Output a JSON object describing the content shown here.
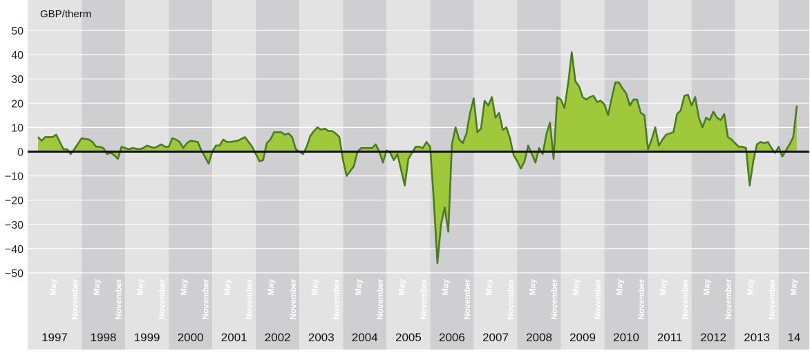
{
  "chart_data": {
    "type": "area",
    "unit_label": "GBP/therm",
    "ylim": [
      -55,
      55
    ],
    "y_ticks": [
      50,
      40,
      30,
      20,
      10,
      0,
      -10,
      -20,
      -30,
      -40,
      -50
    ],
    "y_tick_labels": [
      "50",
      "40",
      "30",
      "20",
      "10",
      "0",
      "−10",
      "−20",
      "−30",
      "−40",
      "−50"
    ],
    "years": [
      "1997",
      "1998",
      "1999",
      "2000",
      "2001",
      "2002",
      "2003",
      "2004",
      "2005",
      "2006",
      "2007",
      "2008",
      "2009",
      "2010",
      "2011",
      "2012",
      "2013",
      "14"
    ],
    "month_labels": {
      "may": "May",
      "november": "November"
    },
    "x_start": "1997-01",
    "x_end": "2014-06",
    "colors": {
      "band_light": "#e3e3e4",
      "band_dark": "#cfcfd1",
      "area_fill": "#9fc93b",
      "line": "#4a7a26",
      "zero_line": "#111111",
      "month_text": "#ffffff"
    },
    "series": [
      {
        "points": [
          [
            "1997-01",
            6
          ],
          [
            "1997-02",
            4.5
          ],
          [
            "1997-03",
            6
          ],
          [
            "1997-05",
            6
          ],
          [
            "1997-06",
            7
          ],
          [
            "1997-07",
            4
          ],
          [
            "1997-08",
            1
          ],
          [
            "1997-09",
            1
          ],
          [
            "1997-10",
            -1
          ],
          [
            "1997-11",
            1
          ],
          [
            "1998-01",
            5.5
          ],
          [
            "1998-03",
            5
          ],
          [
            "1998-04",
            4
          ],
          [
            "1998-05",
            2
          ],
          [
            "1998-06",
            2
          ],
          [
            "1998-07",
            1.5
          ],
          [
            "1998-08",
            -1
          ],
          [
            "1998-09",
            -0.5
          ],
          [
            "1998-10",
            -1.5
          ],
          [
            "1998-11",
            -3
          ],
          [
            "1998-12",
            2
          ],
          [
            "1999-02",
            1
          ],
          [
            "1999-03",
            1.5
          ],
          [
            "1999-05",
            1
          ],
          [
            "1999-06",
            1.5
          ],
          [
            "1999-07",
            2.5
          ],
          [
            "1999-09",
            1.5
          ],
          [
            "1999-11",
            3
          ],
          [
            "1999-12",
            2
          ],
          [
            "2000-01",
            2
          ],
          [
            "2000-02",
            5.5
          ],
          [
            "2000-03",
            5
          ],
          [
            "2000-04",
            4
          ],
          [
            "2000-05",
            1.5
          ],
          [
            "2000-06",
            3.5
          ],
          [
            "2000-07",
            4.5
          ],
          [
            "2000-09",
            4
          ],
          [
            "2000-10",
            0.5
          ],
          [
            "2000-12",
            -5
          ],
          [
            "2001-01",
            0
          ],
          [
            "2001-02",
            2.5
          ],
          [
            "2001-03",
            2.5
          ],
          [
            "2001-04",
            5
          ],
          [
            "2001-05",
            4
          ],
          [
            "2001-06",
            4
          ],
          [
            "2001-08",
            4.5
          ],
          [
            "2001-10",
            6
          ],
          [
            "2001-11",
            4
          ],
          [
            "2001-12",
            2
          ],
          [
            "2002-01",
            -1
          ],
          [
            "2002-02",
            -4
          ],
          [
            "2002-03",
            -3.5
          ],
          [
            "2002-04",
            3.5
          ],
          [
            "2002-05",
            5
          ],
          [
            "2002-06",
            8
          ],
          [
            "2002-08",
            8
          ],
          [
            "2002-09",
            7
          ],
          [
            "2002-10",
            7.5
          ],
          [
            "2002-11",
            6
          ],
          [
            "2002-12",
            1
          ],
          [
            "2003-01",
            0
          ],
          [
            "2003-02",
            -1
          ],
          [
            "2003-03",
            2
          ],
          [
            "2003-04",
            6.5
          ],
          [
            "2003-05",
            8.5
          ],
          [
            "2003-06",
            10
          ],
          [
            "2003-07",
            9
          ],
          [
            "2003-08",
            9.5
          ],
          [
            "2003-09",
            8.5
          ],
          [
            "2003-10",
            8.5
          ],
          [
            "2003-11",
            7.5
          ],
          [
            "2003-12",
            6
          ],
          [
            "2004-01",
            -3.5
          ],
          [
            "2004-02",
            -10
          ],
          [
            "2004-03",
            -8
          ],
          [
            "2004-04",
            -6
          ],
          [
            "2004-05",
            0
          ],
          [
            "2004-06",
            1.5
          ],
          [
            "2004-07",
            1.5
          ],
          [
            "2004-08",
            1.5
          ],
          [
            "2004-09",
            1.5
          ],
          [
            "2004-10",
            3
          ],
          [
            "2004-11",
            0
          ],
          [
            "2004-12",
            -4.5
          ],
          [
            "2005-01",
            0.5
          ],
          [
            "2005-02",
            -0.5
          ],
          [
            "2005-03",
            -3.5
          ],
          [
            "2005-04",
            -1
          ],
          [
            "2005-06",
            -14
          ],
          [
            "2005-07",
            -3
          ],
          [
            "2005-08",
            -0.5
          ],
          [
            "2005-09",
            2
          ],
          [
            "2005-10",
            2
          ],
          [
            "2005-11",
            1.5
          ],
          [
            "2005-12",
            4
          ],
          [
            "2006-01",
            2
          ],
          [
            "2006-02",
            -20
          ],
          [
            "2006-03",
            -46
          ],
          [
            "2006-04",
            -30
          ],
          [
            "2006-05",
            -23
          ],
          [
            "2006-06",
            -33
          ],
          [
            "2006-07",
            3
          ],
          [
            "2006-08",
            10
          ],
          [
            "2006-09",
            5
          ],
          [
            "2006-10",
            3.5
          ],
          [
            "2006-11",
            7.5
          ],
          [
            "2006-12",
            16
          ],
          [
            "2007-01",
            22
          ],
          [
            "2007-02",
            8
          ],
          [
            "2007-03",
            9.5
          ],
          [
            "2007-04",
            21
          ],
          [
            "2007-05",
            19
          ],
          [
            "2007-06",
            22.5
          ],
          [
            "2007-07",
            14
          ],
          [
            "2007-08",
            16
          ],
          [
            "2007-09",
            9
          ],
          [
            "2007-10",
            10
          ],
          [
            "2007-11",
            5.5
          ],
          [
            "2007-12",
            -1.5
          ],
          [
            "2008-01",
            -4
          ],
          [
            "2008-02",
            -7
          ],
          [
            "2008-03",
            -4
          ],
          [
            "2008-04",
            2.5
          ],
          [
            "2008-05",
            -1
          ],
          [
            "2008-06",
            -4.5
          ],
          [
            "2008-07",
            1.5
          ],
          [
            "2008-08",
            -1
          ],
          [
            "2008-09",
            7
          ],
          [
            "2008-10",
            12
          ],
          [
            "2008-11",
            -3
          ],
          [
            "2008-12",
            22.5
          ],
          [
            "2009-01",
            21.5
          ],
          [
            "2009-02",
            18
          ],
          [
            "2009-03",
            28
          ],
          [
            "2009-04",
            41
          ],
          [
            "2009-05",
            29
          ],
          [
            "2009-06",
            27
          ],
          [
            "2009-07",
            22.5
          ],
          [
            "2009-08",
            21.5
          ],
          [
            "2009-09",
            22.5
          ],
          [
            "2009-10",
            23
          ],
          [
            "2009-11",
            20.5
          ],
          [
            "2009-12",
            21
          ],
          [
            "2010-01",
            19.5
          ],
          [
            "2010-02",
            15
          ],
          [
            "2010-03",
            22
          ],
          [
            "2010-04",
            28.5
          ],
          [
            "2010-05",
            28.5
          ],
          [
            "2010-06",
            26
          ],
          [
            "2010-07",
            24
          ],
          [
            "2010-08",
            19
          ],
          [
            "2010-09",
            21.5
          ],
          [
            "2010-10",
            21.5
          ],
          [
            "2010-11",
            16
          ],
          [
            "2010-12",
            15
          ],
          [
            "2011-01",
            1
          ],
          [
            "2011-02",
            5
          ],
          [
            "2011-03",
            10
          ],
          [
            "2011-04",
            2.5
          ],
          [
            "2011-05",
            5
          ],
          [
            "2011-06",
            7
          ],
          [
            "2011-07",
            7.5
          ],
          [
            "2011-08",
            8
          ],
          [
            "2011-09",
            15.5
          ],
          [
            "2011-10",
            17
          ],
          [
            "2011-11",
            23
          ],
          [
            "2011-12",
            23.5
          ],
          [
            "2012-01",
            19
          ],
          [
            "2012-02",
            22.5
          ],
          [
            "2012-03",
            14
          ],
          [
            "2012-04",
            10
          ],
          [
            "2012-05",
            14
          ],
          [
            "2012-06",
            13
          ],
          [
            "2012-07",
            16.5
          ],
          [
            "2012-08",
            14
          ],
          [
            "2012-09",
            13
          ],
          [
            "2012-10",
            15.5
          ],
          [
            "2012-11",
            6
          ],
          [
            "2012-12",
            5
          ],
          [
            "2013-01",
            3.5
          ],
          [
            "2013-02",
            2
          ],
          [
            "2013-03",
            2
          ],
          [
            "2013-04",
            1.5
          ],
          [
            "2013-05",
            -14
          ],
          [
            "2013-06",
            -4
          ],
          [
            "2013-07",
            3
          ],
          [
            "2013-08",
            4
          ],
          [
            "2013-09",
            3.5
          ],
          [
            "2013-10",
            4
          ],
          [
            "2013-11",
            1.5
          ],
          [
            "2013-12",
            -0.5
          ],
          [
            "2014-01",
            2
          ],
          [
            "2014-02",
            -2
          ],
          [
            "2014-03",
            0.5
          ],
          [
            "2014-04",
            3
          ],
          [
            "2014-05",
            6
          ],
          [
            "2014-06",
            19
          ]
        ]
      }
    ]
  }
}
